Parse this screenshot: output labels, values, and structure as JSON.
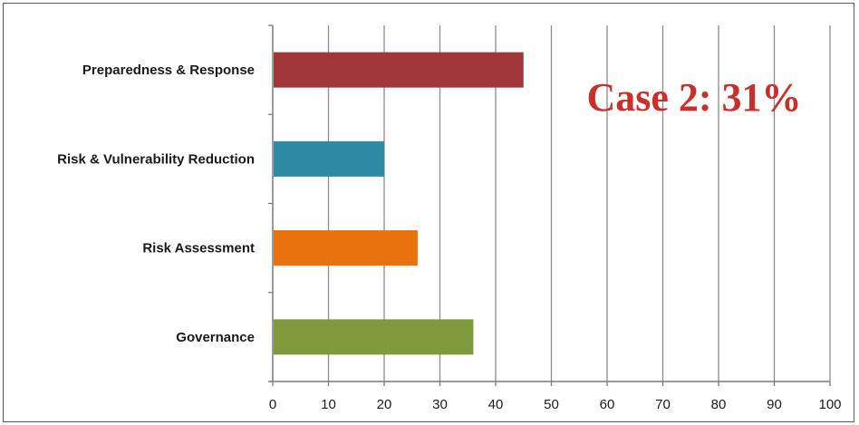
{
  "chart_data": {
    "type": "bar",
    "orientation": "horizontal",
    "categories": [
      "Preparedness & Response",
      "Risk & Vulnerability Reduction",
      "Risk Assessment",
      "Governance"
    ],
    "values": [
      45,
      20,
      26,
      36
    ],
    "colors": [
      "#a0383a",
      "#2e8aa0",
      "#e8710c",
      "#7e9a3c"
    ],
    "xlim": [
      0,
      100
    ],
    "xticks": [
      0,
      10,
      20,
      30,
      40,
      50,
      60,
      70,
      80,
      90,
      100
    ],
    "grid": true,
    "title": "",
    "xlabel": "",
    "ylabel": "",
    "annotation": {
      "text": "Case 2: 31%",
      "color": "#c9302c"
    }
  }
}
